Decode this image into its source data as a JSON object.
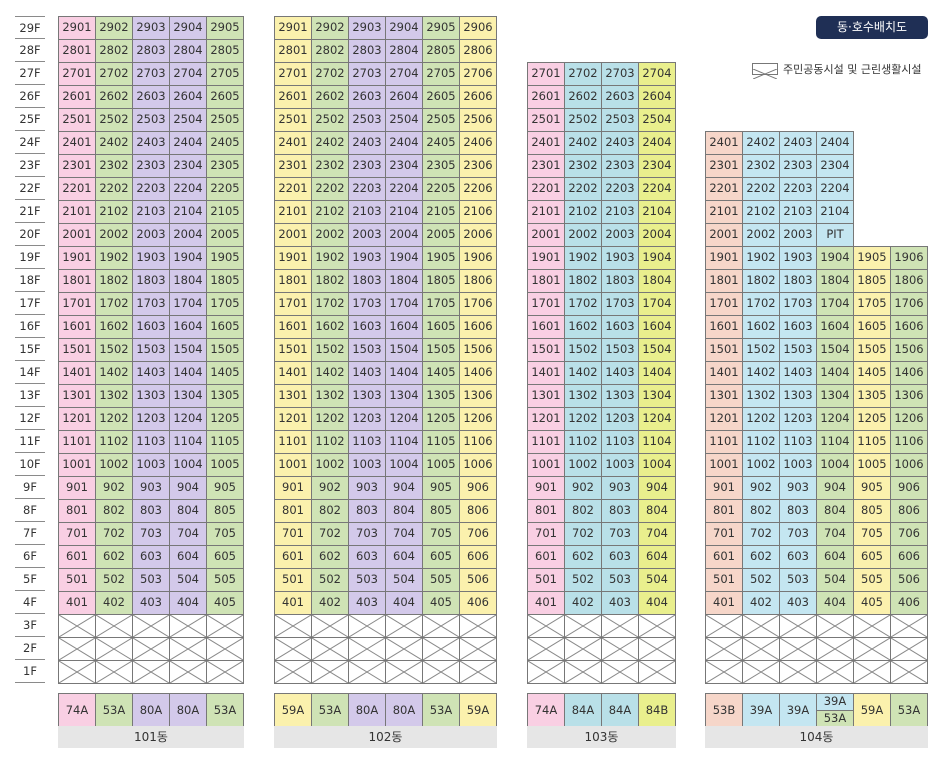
{
  "header": {
    "title": "동·호수배치도",
    "legend_label": "주민공동시설 및 근린생활시설"
  },
  "palette": {
    "pink": "#f9cfe3",
    "green": "#cfe3b5",
    "purple": "#d3c9ea",
    "yellow": "#fbf1ad",
    "blue": "#c4e6f1",
    "peach": "#f6d6c9",
    "teal": "#b9e0e8",
    "lime": "#e9ef8d"
  },
  "floors": [
    "29F",
    "28F",
    "27F",
    "26F",
    "25F",
    "24F",
    "23F",
    "22F",
    "21F",
    "20F",
    "19F",
    "18F",
    "17F",
    "16F",
    "15F",
    "14F",
    "13F",
    "12F",
    "11F",
    "10F",
    "9F",
    "8F",
    "7F",
    "6F",
    "5F",
    "4F",
    "3F",
    "2F",
    "1F"
  ],
  "buildings": [
    {
      "name": "101동",
      "max_floor": 29,
      "columns": [
        {
          "line": 1,
          "color": "pink",
          "type": "74A"
        },
        {
          "line": 2,
          "color": "green",
          "type": "53A"
        },
        {
          "line": 3,
          "color": "purple",
          "type": "80A"
        },
        {
          "line": 4,
          "color": "purple",
          "type": "80A"
        },
        {
          "line": 5,
          "color": "green",
          "type": "53A"
        }
      ],
      "units": [
        [
          "2901",
          "2902",
          "2903",
          "2904",
          "2905"
        ],
        [
          "2801",
          "2802",
          "2803",
          "2804",
          "2805"
        ],
        [
          "2701",
          "2702",
          "2703",
          "2704",
          "2705"
        ],
        [
          "2601",
          "2602",
          "2603",
          "2604",
          "2605"
        ],
        [
          "2501",
          "2502",
          "2503",
          "2504",
          "2505"
        ],
        [
          "2401",
          "2402",
          "2403",
          "2404",
          "2405"
        ],
        [
          "2301",
          "2302",
          "2303",
          "2304",
          "2305"
        ],
        [
          "2201",
          "2202",
          "2203",
          "2204",
          "2205"
        ],
        [
          "2101",
          "2102",
          "2103",
          "2104",
          "2105"
        ],
        [
          "2001",
          "2002",
          "2003",
          "2004",
          "2005"
        ],
        [
          "1901",
          "1902",
          "1903",
          "1904",
          "1905"
        ],
        [
          "1801",
          "1802",
          "1803",
          "1804",
          "1805"
        ],
        [
          "1701",
          "1702",
          "1703",
          "1704",
          "1705"
        ],
        [
          "1601",
          "1602",
          "1603",
          "1604",
          "1605"
        ],
        [
          "1501",
          "1502",
          "1503",
          "1504",
          "1505"
        ],
        [
          "1401",
          "1402",
          "1403",
          "1404",
          "1405"
        ],
        [
          "1301",
          "1302",
          "1303",
          "1304",
          "1305"
        ],
        [
          "1201",
          "1202",
          "1203",
          "1204",
          "1205"
        ],
        [
          "1101",
          "1102",
          "1103",
          "1104",
          "1105"
        ],
        [
          "1001",
          "1002",
          "1003",
          "1004",
          "1005"
        ],
        [
          "901",
          "902",
          "903",
          "904",
          "905"
        ],
        [
          "801",
          "802",
          "803",
          "804",
          "805"
        ],
        [
          "701",
          "702",
          "703",
          "704",
          "705"
        ],
        [
          "601",
          "602",
          "603",
          "604",
          "605"
        ],
        [
          "501",
          "502",
          "503",
          "504",
          "505"
        ],
        [
          "401",
          "402",
          "403",
          "404",
          "405"
        ]
      ]
    },
    {
      "name": "102동",
      "max_floor": 29,
      "columns": [
        {
          "line": 1,
          "color": "yellow",
          "type": "59A"
        },
        {
          "line": 2,
          "color": "green",
          "type": "53A"
        },
        {
          "line": 3,
          "color": "purple",
          "type": "80A"
        },
        {
          "line": 4,
          "color": "purple",
          "type": "80A"
        },
        {
          "line": 5,
          "color": "green",
          "type": "53A"
        },
        {
          "line": 6,
          "color": "yellow",
          "type": "59A"
        }
      ],
      "units": [
        [
          "2901",
          "2902",
          "2903",
          "2904",
          "2905",
          "2906"
        ],
        [
          "2801",
          "2802",
          "2803",
          "2804",
          "2805",
          "2806"
        ],
        [
          "2701",
          "2702",
          "2703",
          "2704",
          "2705",
          "2706"
        ],
        [
          "2601",
          "2602",
          "2603",
          "2604",
          "2605",
          "2606"
        ],
        [
          "2501",
          "2502",
          "2503",
          "2504",
          "2505",
          "2506"
        ],
        [
          "2401",
          "2402",
          "2403",
          "2404",
          "2405",
          "2406"
        ],
        [
          "2301",
          "2302",
          "2303",
          "2304",
          "2305",
          "2306"
        ],
        [
          "2201",
          "2202",
          "2203",
          "2204",
          "2205",
          "2206"
        ],
        [
          "2101",
          "2102",
          "2103",
          "2104",
          "2105",
          "2106"
        ],
        [
          "2001",
          "2002",
          "2003",
          "2004",
          "2005",
          "2006"
        ],
        [
          "1901",
          "1902",
          "1903",
          "1904",
          "1905",
          "1906"
        ],
        [
          "1801",
          "1802",
          "1803",
          "1804",
          "1805",
          "1806"
        ],
        [
          "1701",
          "1702",
          "1703",
          "1704",
          "1705",
          "1706"
        ],
        [
          "1601",
          "1602",
          "1603",
          "1604",
          "1605",
          "1606"
        ],
        [
          "1501",
          "1502",
          "1503",
          "1504",
          "1505",
          "1506"
        ],
        [
          "1401",
          "1402",
          "1403",
          "1404",
          "1405",
          "1406"
        ],
        [
          "1301",
          "1302",
          "1303",
          "1304",
          "1305",
          "1306"
        ],
        [
          "1201",
          "1202",
          "1203",
          "1204",
          "1205",
          "1206"
        ],
        [
          "1101",
          "1102",
          "1103",
          "1104",
          "1105",
          "1106"
        ],
        [
          "1001",
          "1002",
          "1003",
          "1004",
          "1005",
          "1006"
        ],
        [
          "901",
          "902",
          "903",
          "904",
          "905",
          "906"
        ],
        [
          "801",
          "802",
          "803",
          "804",
          "805",
          "806"
        ],
        [
          "701",
          "702",
          "703",
          "704",
          "705",
          "706"
        ],
        [
          "601",
          "602",
          "603",
          "604",
          "605",
          "606"
        ],
        [
          "501",
          "502",
          "503",
          "504",
          "505",
          "506"
        ],
        [
          "401",
          "402",
          "403",
          "404",
          "405",
          "406"
        ]
      ]
    },
    {
      "name": "103동",
      "max_floor": 27,
      "columns": [
        {
          "line": 1,
          "color": "pink",
          "type": "74A"
        },
        {
          "line": 2,
          "color": "teal",
          "type": "84A"
        },
        {
          "line": 3,
          "color": "teal",
          "type": "84A"
        },
        {
          "line": 4,
          "color": "lime",
          "type": "84B"
        }
      ],
      "units": [
        [
          "2701",
          "2702",
          "2703",
          "2704"
        ],
        [
          "2601",
          "2602",
          "2603",
          "2604"
        ],
        [
          "2501",
          "2502",
          "2503",
          "2504"
        ],
        [
          "2401",
          "2402",
          "2403",
          "2404"
        ],
        [
          "2301",
          "2302",
          "2303",
          "2304"
        ],
        [
          "2201",
          "2202",
          "2203",
          "2204"
        ],
        [
          "2101",
          "2102",
          "2103",
          "2104"
        ],
        [
          "2001",
          "2002",
          "2003",
          "2004"
        ],
        [
          "1901",
          "1902",
          "1903",
          "1904"
        ],
        [
          "1801",
          "1802",
          "1803",
          "1804"
        ],
        [
          "1701",
          "1702",
          "1703",
          "1704"
        ],
        [
          "1601",
          "1602",
          "1603",
          "1604"
        ],
        [
          "1501",
          "1502",
          "1503",
          "1504"
        ],
        [
          "1401",
          "1402",
          "1403",
          "1404"
        ],
        [
          "1301",
          "1302",
          "1303",
          "1304"
        ],
        [
          "1201",
          "1202",
          "1203",
          "1204"
        ],
        [
          "1101",
          "1102",
          "1103",
          "1104"
        ],
        [
          "1001",
          "1002",
          "1003",
          "1004"
        ],
        [
          "901",
          "902",
          "903",
          "904"
        ],
        [
          "801",
          "802",
          "803",
          "804"
        ],
        [
          "701",
          "702",
          "703",
          "704"
        ],
        [
          "601",
          "602",
          "603",
          "604"
        ],
        [
          "501",
          "502",
          "503",
          "504"
        ],
        [
          "401",
          "402",
          "403",
          "404"
        ]
      ]
    },
    {
      "name": "104동",
      "max_floor": 24,
      "columns": [
        {
          "line": 1,
          "color": "peach",
          "type": "53B"
        },
        {
          "line": 2,
          "color": "blue",
          "type": "39A"
        },
        {
          "line": 3,
          "color": "blue",
          "type": "39A"
        },
        {
          "line": 4,
          "color": "blue",
          "type": "39A",
          "type_split": [
            {
              "label": "39A",
              "color": "blue"
            },
            {
              "label": "53A",
              "color": "green"
            }
          ],
          "lower_color": "green"
        },
        {
          "line": 5,
          "color": "yellow",
          "type": "59A"
        },
        {
          "line": 6,
          "color": "green",
          "type": "53A"
        }
      ],
      "units": [
        [
          "2401",
          "2402",
          "2403",
          "2404",
          "",
          ""
        ],
        [
          "2301",
          "2302",
          "2303",
          "2304",
          "",
          ""
        ],
        [
          "2201",
          "2202",
          "2203",
          "2204",
          "",
          ""
        ],
        [
          "2101",
          "2102",
          "2103",
          "2104",
          "",
          ""
        ],
        [
          "2001",
          "2002",
          "2003",
          "PIT",
          "",
          ""
        ],
        [
          "1901",
          "1902",
          "1903",
          "1904",
          "1905",
          "1906"
        ],
        [
          "1801",
          "1802",
          "1803",
          "1804",
          "1805",
          "1806"
        ],
        [
          "1701",
          "1702",
          "1703",
          "1704",
          "1705",
          "1706"
        ],
        [
          "1601",
          "1602",
          "1603",
          "1604",
          "1605",
          "1606"
        ],
        [
          "1501",
          "1502",
          "1503",
          "1504",
          "1505",
          "1506"
        ],
        [
          "1401",
          "1402",
          "1403",
          "1404",
          "1405",
          "1406"
        ],
        [
          "1301",
          "1302",
          "1303",
          "1304",
          "1305",
          "1306"
        ],
        [
          "1201",
          "1202",
          "1203",
          "1204",
          "1205",
          "1206"
        ],
        [
          "1101",
          "1102",
          "1103",
          "1104",
          "1105",
          "1106"
        ],
        [
          "1001",
          "1002",
          "1003",
          "1004",
          "1005",
          "1006"
        ],
        [
          "901",
          "902",
          "903",
          "904",
          "905",
          "906"
        ],
        [
          "801",
          "802",
          "803",
          "804",
          "805",
          "806"
        ],
        [
          "701",
          "702",
          "703",
          "704",
          "705",
          "706"
        ],
        [
          "601",
          "602",
          "603",
          "604",
          "605",
          "606"
        ],
        [
          "501",
          "502",
          "503",
          "504",
          "505",
          "506"
        ],
        [
          "401",
          "402",
          "403",
          "404",
          "405",
          "406"
        ]
      ]
    }
  ]
}
